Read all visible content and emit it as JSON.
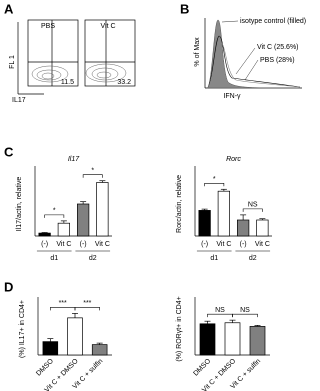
{
  "panel_labels": [
    "A",
    "B",
    "C",
    "D"
  ],
  "panel_a": {
    "plots": [
      {
        "title": "PBS",
        "value_label": "11.5"
      },
      {
        "title": "Vit C",
        "value_label": "33.2"
      }
    ],
    "ylabel": "FL 1",
    "xlabel": "IL17"
  },
  "panel_b": {
    "ylabel": "% of Max",
    "xlabel": "IFN-γ",
    "legend": [
      "isotype control (filled)",
      "Vit C (25.6%)",
      "PBS (28%)"
    ]
  },
  "chart_data": [
    {
      "type": "bar",
      "title": "Il17",
      "ylabel": "Il17/actin, relative",
      "categories": [
        "(-)",
        "Vit C",
        "(-)",
        "Vit C"
      ],
      "groups": [
        "d1",
        "d2"
      ],
      "values": [
        5,
        22,
        55,
        92
      ],
      "errors": [
        1,
        4,
        4,
        3
      ],
      "colors": [
        "#000000",
        "#ffffff",
        "#808080",
        "#ffffff"
      ],
      "ylim": [
        0,
        110
      ],
      "annotations": [
        "*",
        "*"
      ]
    },
    {
      "type": "bar",
      "title": "Rorc",
      "ylabel": "Rorc/actin, relative",
      "categories": [
        "(-)",
        "Vit C",
        "(-)",
        "Vit C"
      ],
      "groups": [
        "d1",
        "d2"
      ],
      "values": [
        40,
        70,
        25,
        25
      ],
      "errors": [
        2,
        3,
        8,
        2
      ],
      "colors": [
        "#000000",
        "#ffffff",
        "#808080",
        "#ffffff"
      ],
      "ylim": [
        0,
        100
      ],
      "annotations": [
        "*",
        "NS"
      ]
    },
    {
      "type": "bar",
      "ylabel": "(%) IL17+ in CD4+",
      "categories": [
        "DMSO",
        "Vit C + DMSO",
        "Vit C + sulfin"
      ],
      "values": [
        9,
        25,
        7
      ],
      "errors": [
        2,
        3,
        1
      ],
      "colors": [
        "#000000",
        "#ffffff",
        "#808080"
      ],
      "ylim": [
        0,
        35
      ],
      "annotations": [
        "***",
        "***"
      ]
    },
    {
      "type": "bar",
      "ylabel": "(%) RORγt+ in CD4+",
      "categories": [
        "DMSO",
        "Vit C + DMSO",
        "Vit C + sulfin"
      ],
      "values": [
        60,
        62,
        55
      ],
      "errors": [
        5,
        5,
        2
      ],
      "colors": [
        "#000000",
        "#ffffff",
        "#808080"
      ],
      "ylim": [
        0,
        100
      ],
      "annotations": [
        "NS",
        "NS"
      ]
    }
  ]
}
